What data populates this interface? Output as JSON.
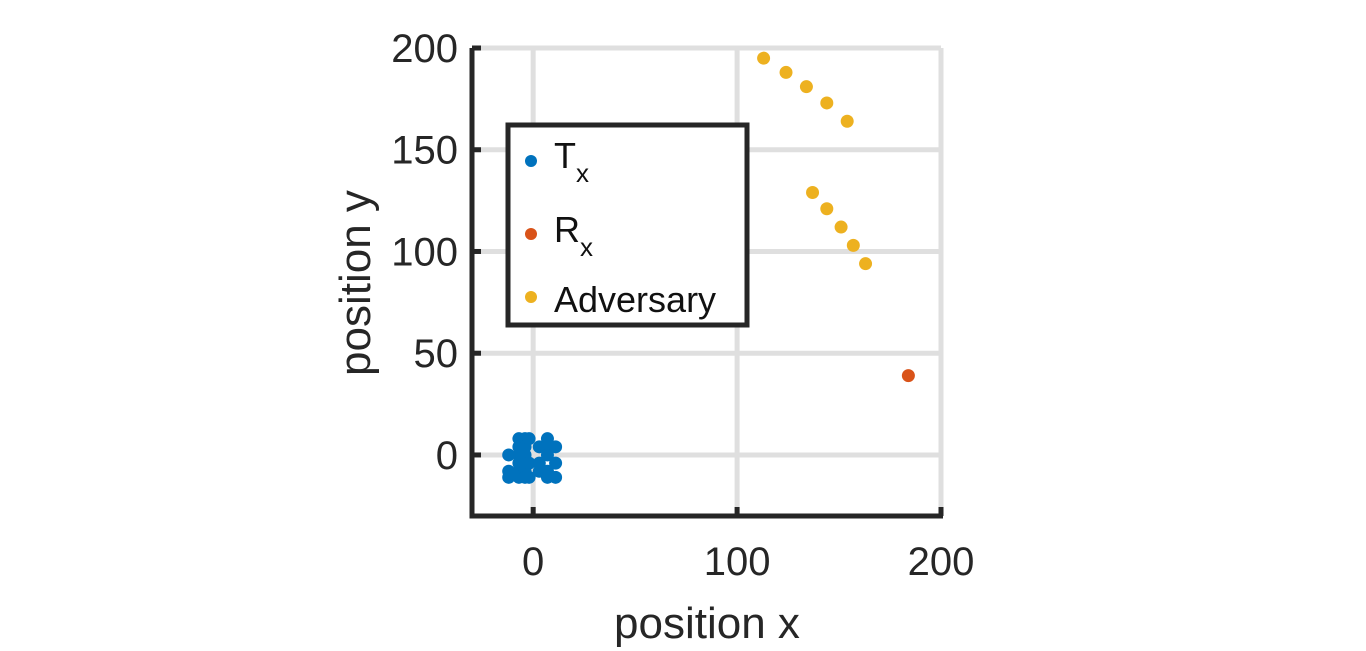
{
  "chart_data": {
    "type": "scatter",
    "title": "",
    "xlabel": "position x",
    "ylabel": "position y",
    "xlim": [
      -30,
      200
    ],
    "ylim": [
      -30,
      200
    ],
    "xticks": [
      0,
      100,
      200
    ],
    "yticks": [
      0,
      50,
      100,
      150,
      200
    ],
    "xtick_labels": [
      "0",
      "100",
      "200"
    ],
    "ytick_labels": [
      "0",
      "50",
      "100",
      "150",
      "200"
    ],
    "grid": true,
    "legend_position": "upper-left",
    "series": [
      {
        "name": "T",
        "name_subscript": "x",
        "color": "#0072BD",
        "points": [
          [
            -12,
            0
          ],
          [
            -12,
            -8
          ],
          [
            -12,
            -11
          ],
          [
            -7,
            8
          ],
          [
            -7,
            4
          ],
          [
            -7,
            0
          ],
          [
            -7,
            -4
          ],
          [
            -7,
            -8
          ],
          [
            -7,
            -11
          ],
          [
            -4,
            8
          ],
          [
            -4,
            4
          ],
          [
            -4,
            0
          ],
          [
            -4,
            -4
          ],
          [
            -4,
            -8
          ],
          [
            -4,
            -11
          ],
          [
            -2,
            8
          ],
          [
            -2,
            -4
          ],
          [
            -2,
            -11
          ],
          [
            3,
            4
          ],
          [
            3,
            -4
          ],
          [
            3,
            -8
          ],
          [
            7,
            8
          ],
          [
            7,
            4
          ],
          [
            7,
            0
          ],
          [
            7,
            -8
          ],
          [
            7,
            -11
          ],
          [
            11,
            4
          ],
          [
            11,
            -4
          ],
          [
            11,
            -11
          ]
        ]
      },
      {
        "name": "R",
        "name_subscript": "x",
        "color": "#D95319",
        "points": [
          [
            184,
            39
          ]
        ]
      },
      {
        "name": "Adversary",
        "name_subscript": "",
        "color": "#EDB120",
        "points": [
          [
            113,
            195
          ],
          [
            124,
            188
          ],
          [
            134,
            181
          ],
          [
            144,
            173
          ],
          [
            154,
            164
          ],
          [
            137,
            129
          ],
          [
            144,
            121
          ],
          [
            151,
            112
          ],
          [
            157,
            103
          ],
          [
            163,
            94
          ]
        ]
      }
    ]
  },
  "colors": {
    "axis": "#262626",
    "grid": "#dfdfdf"
  }
}
